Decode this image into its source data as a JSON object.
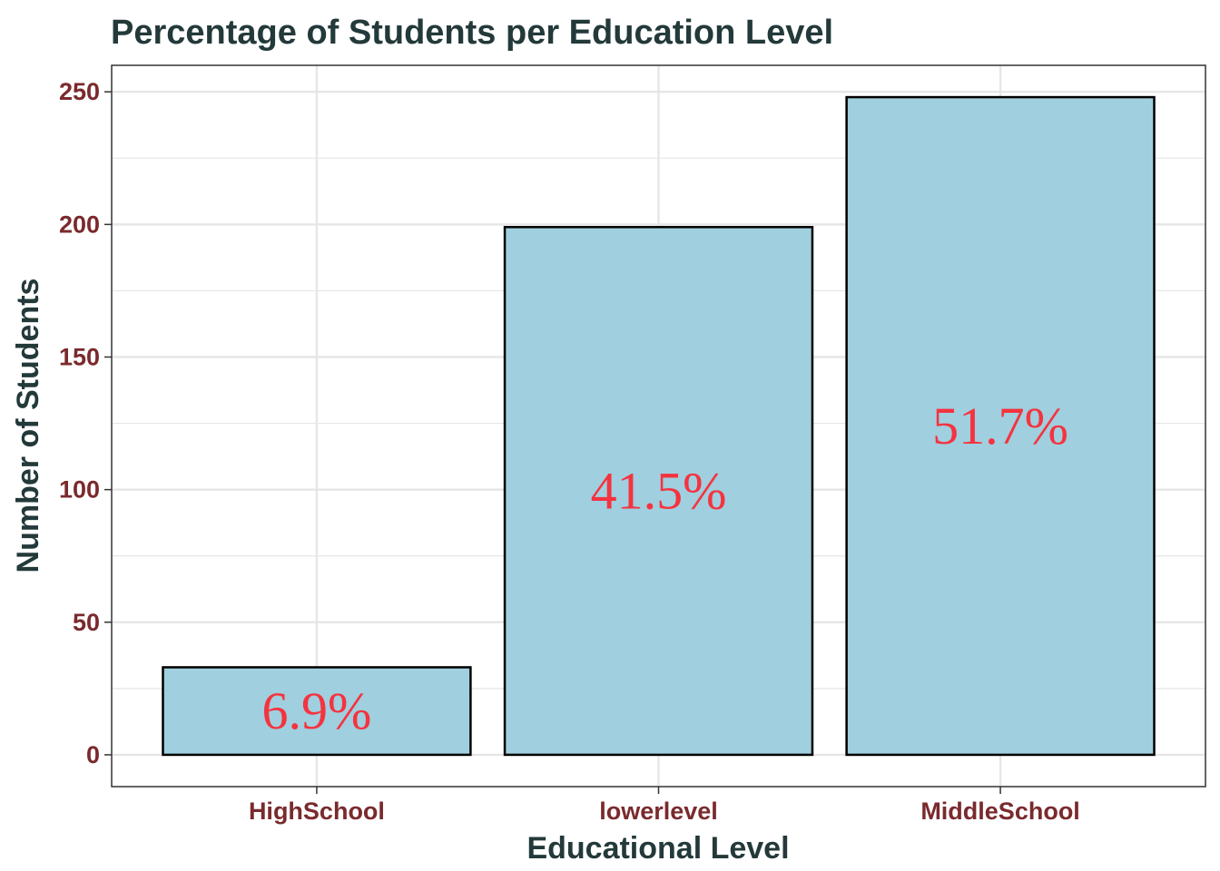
{
  "colors": {
    "title": "#23393a",
    "axis_title": "#23393a",
    "tick_label": "#7a2a2d",
    "bar_fill": "#a0cfdf",
    "bar_stroke": "#000000",
    "data_label": "#f5333f",
    "grid": "#e6e6e6",
    "panel_border": "#333333"
  },
  "chart_data": {
    "type": "bar",
    "title": "Percentage of Students per Education Level",
    "xlabel": "Educational Level",
    "ylabel": "Number of Students",
    "categories": [
      "HighSchool",
      "lowerlevel",
      "MiddleSchool"
    ],
    "values": [
      33,
      199,
      248
    ],
    "data_labels": [
      "6.9%",
      "41.5%",
      "51.7%"
    ],
    "ylim": [
      -12,
      260
    ],
    "yticks": [
      0,
      50,
      100,
      150,
      200,
      250
    ],
    "ytick_labels": [
      "0",
      "50",
      "100",
      "150",
      "200",
      "250"
    ],
    "grid": true,
    "legend": "none"
  }
}
